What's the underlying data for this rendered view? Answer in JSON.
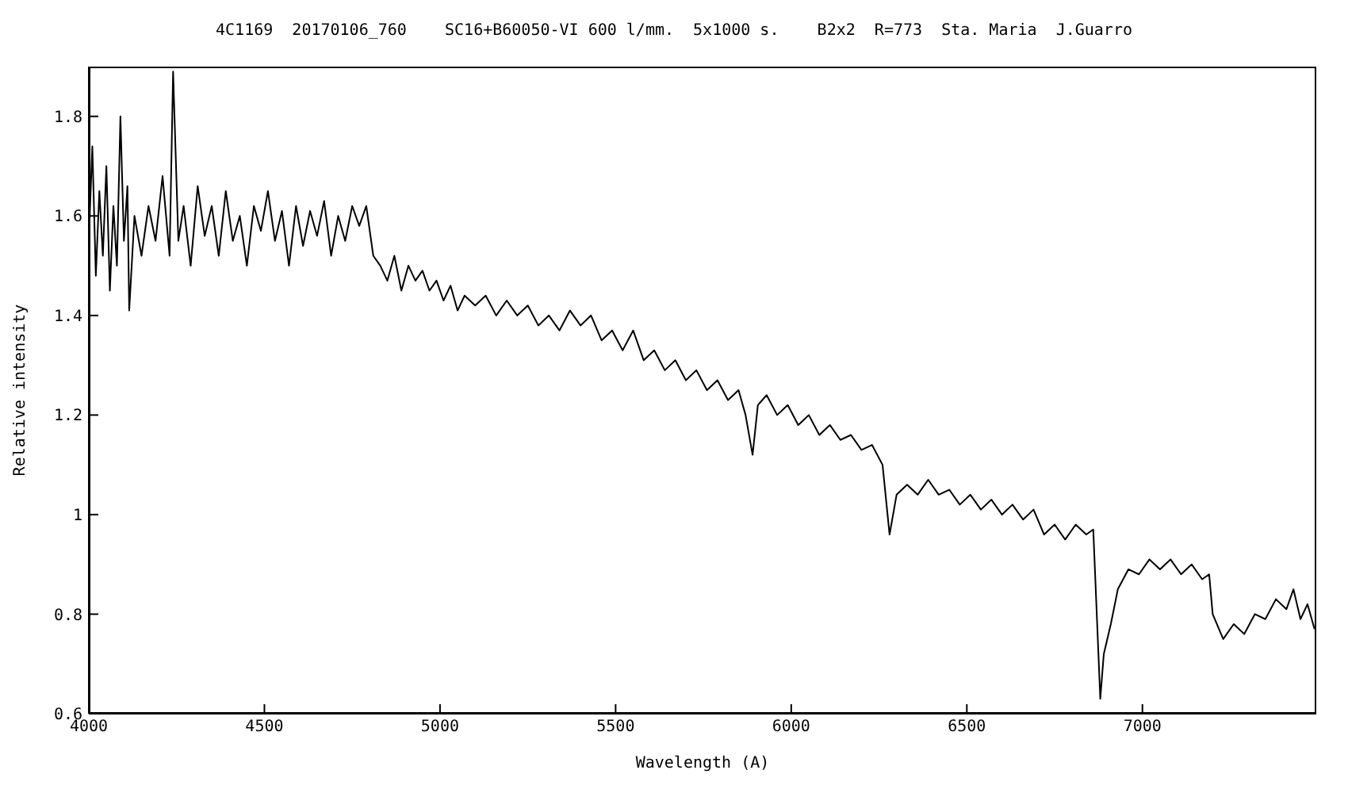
{
  "chart_data": {
    "type": "line",
    "title": "4C1169  20170106_760    SC16+B60050-VI 600 l/mm.  5x1000 s.    B2x2  R=773  Sta. Maria  J.Guarro",
    "xlabel": "Wavelength (A)",
    "ylabel": "Relative intensity",
    "xlim": [
      4000,
      7495
    ],
    "xticks": [
      4000,
      4500,
      5000,
      5500,
      6000,
      6500,
      7000
    ],
    "ylim": [
      0.6,
      1.9
    ],
    "yticks": [
      0.6,
      0.8,
      1,
      1.2,
      1.4,
      1.6,
      1.8
    ],
    "grid": false,
    "legend": false,
    "marker": "none",
    "line_style": "solid",
    "x": [
      4000,
      4010,
      4020,
      4030,
      4040,
      4050,
      4060,
      4070,
      4080,
      4090,
      4100,
      4110,
      4115,
      4130,
      4150,
      4170,
      4190,
      4210,
      4230,
      4240,
      4255,
      4270,
      4290,
      4310,
      4330,
      4350,
      4370,
      4390,
      4410,
      4430,
      4450,
      4470,
      4490,
      4510,
      4530,
      4550,
      4570,
      4590,
      4610,
      4630,
      4650,
      4670,
      4690,
      4710,
      4730,
      4750,
      4770,
      4790,
      4810,
      4830,
      4850,
      4870,
      4890,
      4910,
      4930,
      4950,
      4970,
      4990,
      5010,
      5030,
      5050,
      5070,
      5100,
      5130,
      5160,
      5190,
      5220,
      5250,
      5280,
      5310,
      5340,
      5370,
      5400,
      5430,
      5460,
      5490,
      5520,
      5550,
      5580,
      5610,
      5640,
      5670,
      5700,
      5730,
      5760,
      5790,
      5820,
      5850,
      5870,
      5890,
      5905,
      5930,
      5960,
      5990,
      6020,
      6050,
      6080,
      6110,
      6140,
      6170,
      6200,
      6230,
      6260,
      6280,
      6300,
      6330,
      6360,
      6390,
      6420,
      6450,
      6480,
      6510,
      6540,
      6570,
      6600,
      6630,
      6660,
      6690,
      6720,
      6750,
      6780,
      6810,
      6840,
      6860,
      6870,
      6880,
      6890,
      6910,
      6930,
      6960,
      6990,
      7020,
      7050,
      7080,
      7110,
      7140,
      7170,
      7190,
      7200,
      7230,
      7260,
      7290,
      7320,
      7350,
      7380,
      7410,
      7430,
      7450,
      7470,
      7490
    ],
    "series": [
      {
        "color": "#000000",
        "values": [
          1.55,
          1.74,
          1.48,
          1.65,
          1.52,
          1.7,
          1.45,
          1.62,
          1.5,
          1.8,
          1.55,
          1.66,
          1.41,
          1.6,
          1.52,
          1.62,
          1.55,
          1.68,
          1.52,
          1.89,
          1.55,
          1.62,
          1.5,
          1.66,
          1.56,
          1.62,
          1.52,
          1.65,
          1.55,
          1.6,
          1.5,
          1.62,
          1.57,
          1.65,
          1.55,
          1.61,
          1.5,
          1.62,
          1.54,
          1.61,
          1.56,
          1.63,
          1.52,
          1.6,
          1.55,
          1.62,
          1.58,
          1.62,
          1.52,
          1.5,
          1.47,
          1.52,
          1.45,
          1.5,
          1.47,
          1.49,
          1.45,
          1.47,
          1.43,
          1.46,
          1.41,
          1.44,
          1.42,
          1.44,
          1.4,
          1.43,
          1.4,
          1.42,
          1.38,
          1.4,
          1.37,
          1.41,
          1.38,
          1.4,
          1.35,
          1.37,
          1.33,
          1.37,
          1.31,
          1.33,
          1.29,
          1.31,
          1.27,
          1.29,
          1.25,
          1.27,
          1.23,
          1.25,
          1.2,
          1.12,
          1.22,
          1.24,
          1.2,
          1.22,
          1.18,
          1.2,
          1.16,
          1.18,
          1.15,
          1.16,
          1.13,
          1.14,
          1.1,
          0.96,
          1.04,
          1.06,
          1.04,
          1.07,
          1.04,
          1.05,
          1.02,
          1.04,
          1.01,
          1.03,
          1,
          1.02,
          0.99,
          1.01,
          0.96,
          0.98,
          0.95,
          0.98,
          0.96,
          0.97,
          0.8,
          0.63,
          0.72,
          0.78,
          0.85,
          0.89,
          0.88,
          0.91,
          0.89,
          0.91,
          0.88,
          0.9,
          0.87,
          0.88,
          0.8,
          0.75,
          0.78,
          0.76,
          0.8,
          0.79,
          0.83,
          0.81,
          0.85,
          0.79,
          0.82,
          0.77
        ]
      }
    ]
  }
}
